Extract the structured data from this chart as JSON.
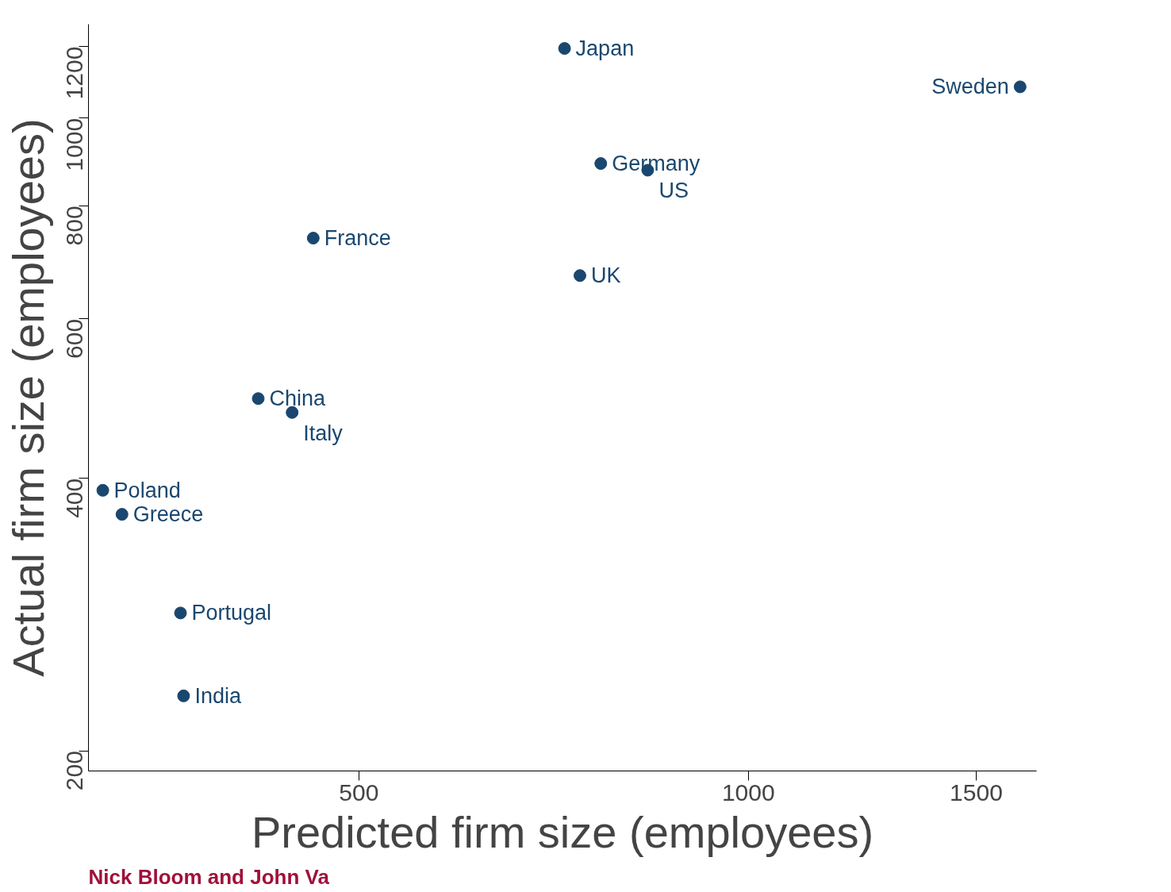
{
  "chart_data": {
    "type": "scatter",
    "xlabel": "Predicted firm size (employees)",
    "ylabel": "Actual firm size (employees)",
    "log": "xy",
    "grid": false,
    "marker": "circle",
    "xlim": [
      309,
      1670
    ],
    "ylim": [
      190,
      1270
    ],
    "xticks": [
      500,
      1000,
      1500
    ],
    "yticks": [
      200,
      400,
      600,
      800,
      1000,
      1200
    ],
    "series": [
      {
        "color": "#1a476f",
        "x": [
          721,
          1622,
          769,
          836,
          461,
          741,
          418,
          444,
          317,
          328,
          364,
          366
        ],
        "values": [
          1194,
          1083,
          891,
          876,
          737,
          670,
          490,
          473,
          388,
          365,
          284,
          230
        ]
      }
    ],
    "annotations": [
      {
        "text": "Japan",
        "x": 721,
        "y": 1194
      },
      {
        "text": "Sweden",
        "x": 1622,
        "y": 1083
      },
      {
        "text": "Germany",
        "x": 769,
        "y": 891
      },
      {
        "text": "US",
        "x": 836,
        "y": 876
      },
      {
        "text": "France",
        "x": 461,
        "y": 737
      },
      {
        "text": "UK",
        "x": 741,
        "y": 670
      },
      {
        "text": "China",
        "x": 418,
        "y": 490
      },
      {
        "text": "Italy",
        "x": 444,
        "y": 473
      },
      {
        "text": "Poland",
        "x": 317,
        "y": 388
      },
      {
        "text": "Greece",
        "x": 328,
        "y": 365
      },
      {
        "text": "Portugal",
        "x": 364,
        "y": 284
      },
      {
        "text": "India",
        "x": 366,
        "y": 230
      },
      "Nick Bloom and John Va"
    ]
  }
}
